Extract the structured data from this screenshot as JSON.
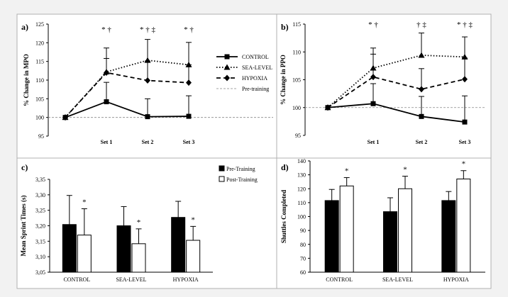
{
  "chart_data": [
    {
      "panel": "a)",
      "type": "line",
      "ylabel": "% Change in MPO",
      "ylim": [
        95,
        125
      ],
      "yticks": [
        95,
        100,
        105,
        110,
        115,
        120,
        125
      ],
      "categories": [
        "",
        "Set 1",
        "Set 2",
        "Set 3"
      ],
      "reference_line": 100,
      "series": [
        {
          "name": "CONTROL",
          "marker": "square",
          "style": "solid",
          "values": [
            100,
            104.2,
            100.2,
            100.3
          ],
          "errors": [
            null,
            5.2,
            4.8,
            5.5
          ]
        },
        {
          "name": "SEA-LEVEL",
          "marker": "triangle",
          "style": "dotted",
          "values": [
            100,
            112.2,
            115.3,
            114.1
          ],
          "errors": [
            null,
            6.4,
            5.6,
            6.0
          ]
        },
        {
          "name": "HYPOXIA",
          "marker": "diamond",
          "style": "dashed",
          "values": [
            100,
            112.0,
            109.9,
            109.3
          ],
          "errors": [
            null,
            3.8,
            5.2,
            4.8
          ]
        }
      ],
      "annotations": [
        {
          "x": "Set 1",
          "text": "* †"
        },
        {
          "x": "Set 2",
          "text": "* † ‡"
        },
        {
          "x": "Set 3",
          "text": "* †"
        }
      ],
      "legend": {
        "placement": "right",
        "entries": [
          "CONTROL",
          "SEA-LEVEL",
          "HYPOXIA",
          "Pre-training"
        ]
      }
    },
    {
      "panel": "b)",
      "type": "line",
      "ylabel": "% Change in PPO",
      "ylim": [
        95,
        115
      ],
      "yticks": [
        95,
        100,
        105,
        110,
        115
      ],
      "categories": [
        "",
        "Set 1",
        "Set 2",
        "Set 3"
      ],
      "reference_line": 100,
      "series": [
        {
          "name": "CONTROL",
          "marker": "square",
          "style": "solid",
          "values": [
            100,
            100.7,
            98.4,
            97.4
          ],
          "errors": [
            null,
            3.6,
            3.6,
            4.7
          ]
        },
        {
          "name": "SEA-LEVEL",
          "marker": "triangle",
          "style": "dotted",
          "values": [
            100,
            107.1,
            109.4,
            109.1
          ],
          "errors": [
            null,
            3.6,
            4.0,
            3.6
          ]
        },
        {
          "name": "HYPOXIA",
          "marker": "diamond",
          "style": "dashed",
          "values": [
            100,
            105.5,
            103.3,
            105.1
          ],
          "errors": [
            null,
            4.1,
            3.7,
            3.8
          ]
        }
      ],
      "annotations": [
        {
          "x": "Set 1",
          "text": "* †"
        },
        {
          "x": "Set 2",
          "text": "† ‡"
        },
        {
          "x": "Set 3",
          "text": "* † ‡"
        }
      ]
    },
    {
      "panel": "c)",
      "type": "bar",
      "ylabel": "Mean Sprint Times (s)",
      "ylim": [
        3.05,
        3.35
      ],
      "yticks": [
        "3,05",
        "3,10",
        "3,15",
        "3,20",
        "3,25",
        "3,30",
        "3,35"
      ],
      "categories": [
        "CONTROL",
        "SEA-LEVEL",
        "HYPOXIA"
      ],
      "series": [
        {
          "name": "Pre-Training",
          "fill": "#000000",
          "values": [
            3.204,
            3.2,
            3.227
          ],
          "errors": [
            0.094,
            0.062,
            0.052
          ]
        },
        {
          "name": "Post-Training",
          "fill": "#ffffff",
          "values": [
            3.17,
            3.142,
            3.153
          ],
          "errors": [
            0.085,
            0.048,
            0.045
          ]
        }
      ],
      "annotations": [
        {
          "category": "CONTROL",
          "text": "*"
        },
        {
          "category": "SEA-LEVEL",
          "text": "*"
        },
        {
          "category": "HYPOXIA",
          "text": "*"
        }
      ],
      "legend": {
        "placement": "top-right",
        "entries": [
          "Pre-Training",
          "Post-Training"
        ]
      }
    },
    {
      "panel": "d)",
      "type": "bar",
      "ylabel": "Shuttles Completed",
      "ylim": [
        60,
        140
      ],
      "yticks": [
        60,
        70,
        80,
        90,
        100,
        110,
        120,
        130,
        140
      ],
      "categories": [
        "CONTROL",
        "SEA-LEVEL",
        "HYPOXIA"
      ],
      "series": [
        {
          "values": [
            111.5,
            103.5,
            111.5
          ],
          "errors": [
            8,
            10,
            6.5
          ],
          "fill": "#000000"
        },
        {
          "values": [
            122,
            120,
            127
          ],
          "errors": [
            6,
            9,
            6
          ],
          "fill": "#ffffff"
        }
      ],
      "annotations": [
        {
          "category": "CONTROL",
          "text": "*"
        },
        {
          "category": "SEA-LEVEL",
          "text": "*"
        },
        {
          "category": "HYPOXIA",
          "text": "*"
        }
      ]
    }
  ]
}
